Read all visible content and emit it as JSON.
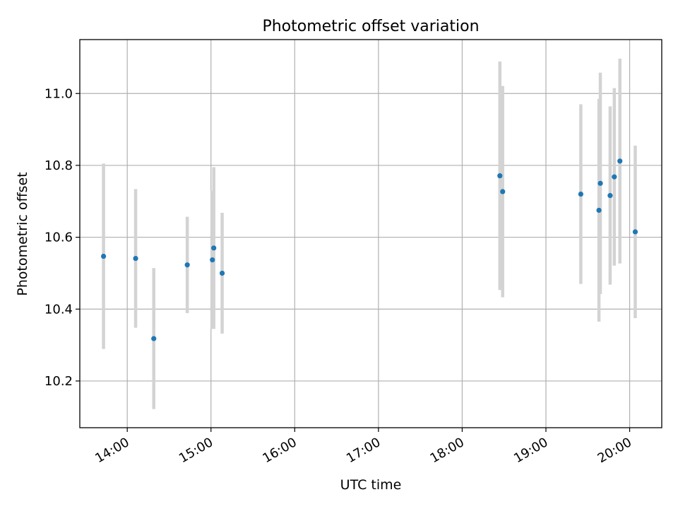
{
  "chart_data": {
    "type": "scatter",
    "title": "Photometric offset variation",
    "xlabel": "UTC time",
    "ylabel": "Photometric offset",
    "x_ticks": [
      "14:00",
      "15:00",
      "16:00",
      "17:00",
      "18:00",
      "19:00",
      "20:00"
    ],
    "y_ticks": [
      "10.2",
      "10.4",
      "10.6",
      "10.8",
      "11.0"
    ],
    "xlim": [
      "13:26",
      "20:23"
    ],
    "ylim": [
      10.07,
      11.15
    ],
    "grid": true,
    "point_color": "#1f77b4",
    "errorbar_color": "#d3d3d3",
    "series": [
      {
        "points": [
          {
            "x": "13:43",
            "y": 10.547,
            "err": 0.258
          },
          {
            "x": "14:06",
            "y": 10.541,
            "err": 0.193
          },
          {
            "x": "14:19",
            "y": 10.318,
            "err": 0.196
          },
          {
            "x": "14:43",
            "y": 10.523,
            "err": 0.134
          },
          {
            "x": "15:01",
            "y": 10.537,
            "err": 0.192
          },
          {
            "x": "15:02",
            "y": 10.57,
            "err": 0.225
          },
          {
            "x": "15:08",
            "y": 10.5,
            "err": 0.168
          },
          {
            "x": "18:27",
            "y": 10.771,
            "err": 0.318
          },
          {
            "x": "18:29",
            "y": 10.727,
            "err": 0.294
          },
          {
            "x": "19:25",
            "y": 10.72,
            "err": 0.25
          },
          {
            "x": "19:38",
            "y": 10.675,
            "err": 0.31
          },
          {
            "x": "19:39",
            "y": 10.75,
            "err": 0.308
          },
          {
            "x": "19:46",
            "y": 10.716,
            "err": 0.248
          },
          {
            "x": "19:49",
            "y": 10.768,
            "err": 0.247
          },
          {
            "x": "19:53",
            "y": 10.812,
            "err": 0.285
          },
          {
            "x": "20:04",
            "y": 10.615,
            "err": 0.24
          }
        ]
      }
    ]
  }
}
